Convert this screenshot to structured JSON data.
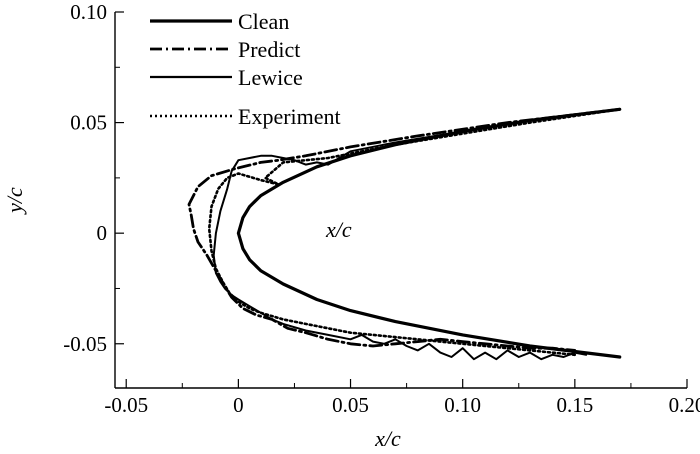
{
  "chart_data": {
    "type": "line",
    "title": "",
    "xlabel": "x/c",
    "ylabel": "y/c",
    "xlim": [
      -0.055,
      0.2
    ],
    "ylim": [
      -0.07,
      0.1
    ],
    "xticks": [
      -0.05,
      0,
      0.05,
      0.1,
      0.15,
      0.2
    ],
    "xtick_labels": [
      "-0.05",
      "0",
      "0.05",
      "0.10",
      "0.15",
      "0.20"
    ],
    "yticks": [
      -0.05,
      0,
      0.05,
      0.1
    ],
    "ytick_labels": [
      "-0.05",
      "0",
      "0.05",
      "0.10"
    ],
    "grid": false,
    "legend_position": "top-left",
    "annotation": "x/c",
    "series": [
      {
        "name": "Clean",
        "style": "solid",
        "x": [
          0.17,
          0.13,
          0.1,
          0.07,
          0.05,
          0.035,
          0.02,
          0.01,
          0.005,
          0.002,
          0.0,
          0.002,
          0.005,
          0.01,
          0.02,
          0.035,
          0.05,
          0.07,
          0.1,
          0.13,
          0.17
        ],
        "y": [
          0.056,
          0.051,
          0.046,
          0.04,
          0.035,
          0.03,
          0.023,
          0.017,
          0.012,
          0.007,
          0.0,
          -0.007,
          -0.012,
          -0.017,
          -0.023,
          -0.03,
          -0.035,
          -0.04,
          -0.046,
          -0.051,
          -0.056
        ]
      },
      {
        "name": "Predict",
        "style": "dashdot",
        "x": [
          0.17,
          0.12,
          0.08,
          0.05,
          0.03,
          0.018,
          0.01,
          -0.002,
          -0.012,
          -0.018,
          -0.022,
          -0.021,
          -0.02,
          -0.018,
          -0.014,
          -0.01,
          -0.006,
          -0.003,
          0.002,
          0.008,
          0.015,
          0.022,
          0.03,
          0.04,
          0.05,
          0.06,
          0.07,
          0.08,
          0.09,
          0.1,
          0.11,
          0.12,
          0.13,
          0.14,
          0.15
        ],
        "y": [
          0.056,
          0.05,
          0.044,
          0.039,
          0.035,
          0.033,
          0.032,
          0.029,
          0.026,
          0.021,
          0.013,
          0.008,
          0.002,
          -0.004,
          -0.01,
          -0.017,
          -0.024,
          -0.029,
          -0.034,
          -0.037,
          -0.039,
          -0.043,
          -0.045,
          -0.048,
          -0.05,
          -0.051,
          -0.05,
          -0.049,
          -0.048,
          -0.049,
          -0.05,
          -0.051,
          -0.052,
          -0.052,
          -0.053
        ]
      },
      {
        "name": "Lewice",
        "style": "solid-thin",
        "x": [
          0.17,
          0.13,
          0.1,
          0.07,
          0.05,
          0.045,
          0.04,
          0.035,
          0.03,
          0.025,
          0.02,
          0.015,
          0.01,
          0.005,
          0.0,
          -0.003,
          -0.005,
          -0.008,
          -0.01,
          -0.011,
          -0.01,
          -0.008,
          -0.006,
          -0.003,
          0.0,
          0.005,
          0.01,
          0.015,
          0.02,
          0.03,
          0.04,
          0.05,
          0.055,
          0.06,
          0.065,
          0.07,
          0.075,
          0.08,
          0.085,
          0.09,
          0.095,
          0.1,
          0.105,
          0.11,
          0.115,
          0.12,
          0.125,
          0.13,
          0.135,
          0.14,
          0.145,
          0.15,
          0.155
        ],
        "y": [
          0.056,
          0.051,
          0.046,
          0.041,
          0.037,
          0.034,
          0.031,
          0.032,
          0.031,
          0.033,
          0.034,
          0.035,
          0.035,
          0.034,
          0.033,
          0.028,
          0.02,
          0.01,
          0.0,
          -0.01,
          -0.018,
          -0.022,
          -0.025,
          -0.028,
          -0.03,
          -0.033,
          -0.036,
          -0.039,
          -0.041,
          -0.044,
          -0.046,
          -0.048,
          -0.046,
          -0.049,
          -0.05,
          -0.048,
          -0.051,
          -0.053,
          -0.05,
          -0.054,
          -0.056,
          -0.052,
          -0.057,
          -0.054,
          -0.057,
          -0.053,
          -0.056,
          -0.054,
          -0.057,
          -0.055,
          -0.056,
          -0.054,
          -0.055
        ]
      },
      {
        "name": "Experiment",
        "style": "dotted",
        "x": [
          0.17,
          0.13,
          0.1,
          0.07,
          0.05,
          0.04,
          0.03,
          0.02,
          0.012,
          0.018,
          0.01,
          0.0,
          -0.005,
          -0.009,
          -0.012,
          -0.013,
          -0.012,
          -0.01,
          -0.007,
          -0.004,
          0.0,
          0.005,
          0.01,
          0.02,
          0.03,
          0.04,
          0.05,
          0.06,
          0.07,
          0.08,
          0.09,
          0.1,
          0.11,
          0.12,
          0.13,
          0.14,
          0.15
        ],
        "y": [
          0.056,
          0.05,
          0.045,
          0.04,
          0.036,
          0.034,
          0.033,
          0.032,
          0.025,
          0.022,
          0.024,
          0.027,
          0.025,
          0.02,
          0.012,
          0.002,
          -0.008,
          -0.016,
          -0.022,
          -0.027,
          -0.031,
          -0.034,
          -0.036,
          -0.039,
          -0.041,
          -0.043,
          -0.045,
          -0.046,
          -0.047,
          -0.048,
          -0.049,
          -0.05,
          -0.051,
          -0.052,
          -0.053,
          -0.054,
          -0.055
        ]
      }
    ]
  }
}
